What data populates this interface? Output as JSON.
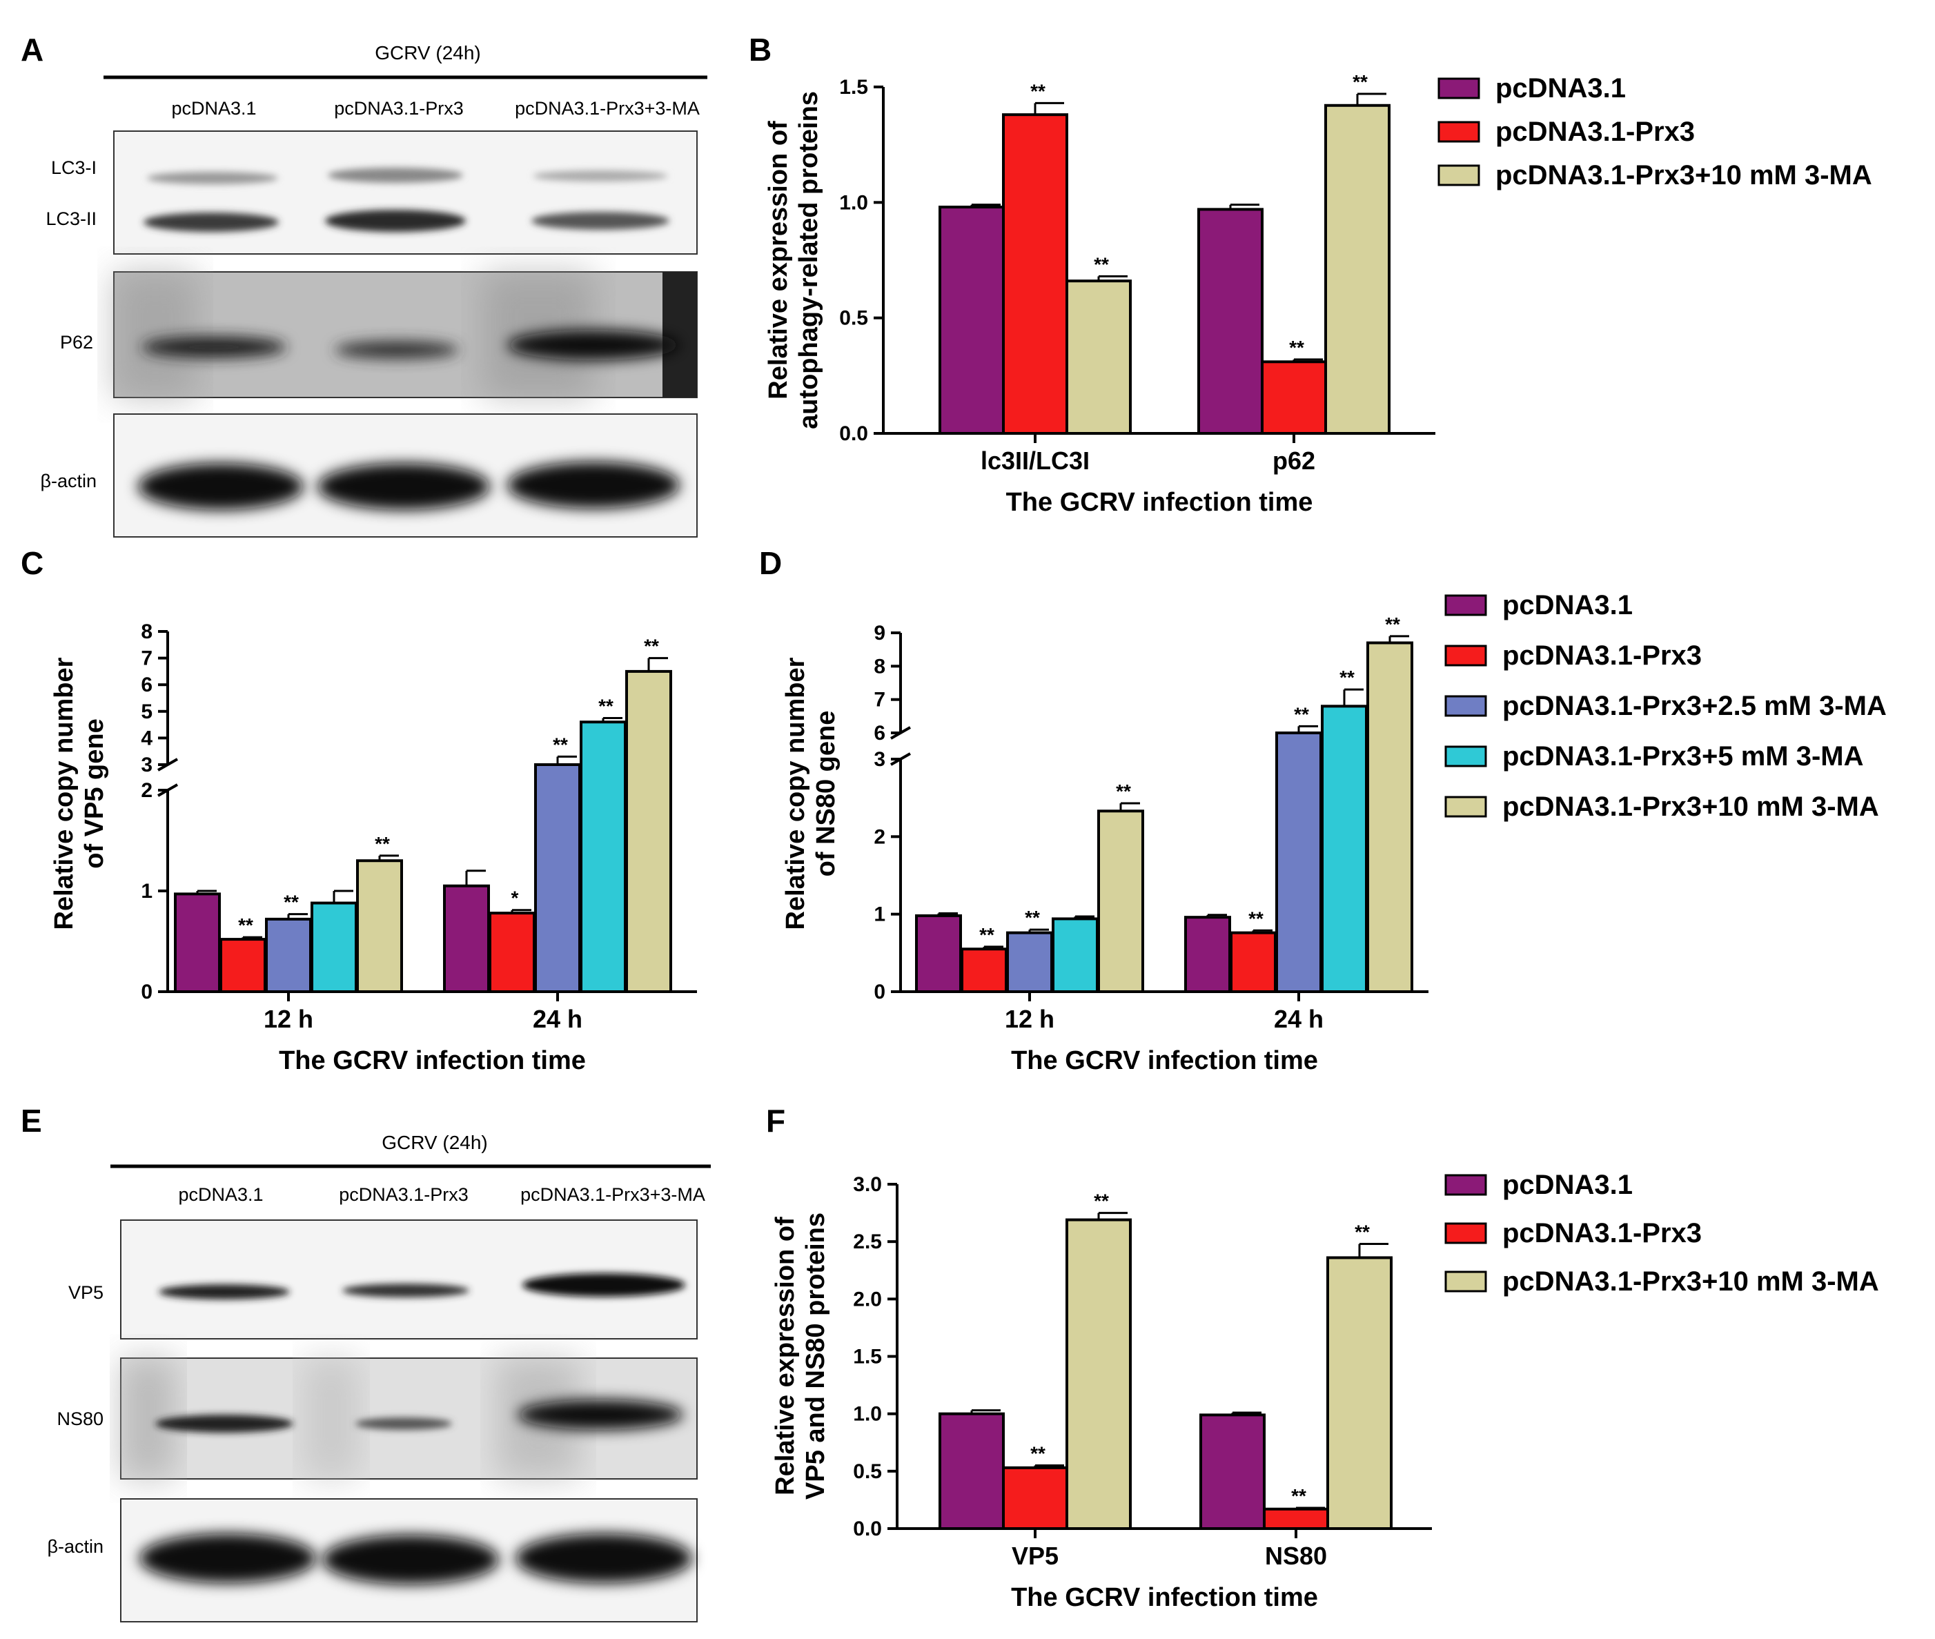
{
  "colors": {
    "pcDNA31": "#8B1A77",
    "Prx3": "#F51C1C",
    "Prx3_25": "#6F7EC4",
    "Prx3_5": "#2FC9D6",
    "Prx3_10": "#D6D29C"
  },
  "blots": {
    "A": {
      "letter": "A",
      "header": "GCRV (24h)",
      "lanes": [
        "pcDNA3.1",
        "pcDNA3.1-Prx3",
        "pcDNA3.1-Prx3+3-MA"
      ],
      "labels": [
        "LC3-I",
        "LC3-II",
        "P62",
        "β-actin"
      ]
    },
    "E": {
      "letter": "E",
      "header": "GCRV (24h)",
      "lanes": [
        "pcDNA3.1",
        "pcDNA3.1-Prx3",
        "pcDNA3.1-Prx3+3-MA"
      ],
      "labels": [
        "VP5",
        "NS80",
        "β-actin"
      ]
    }
  },
  "chart_data": [
    {
      "panel": "B",
      "type": "bar",
      "categories": [
        "lc3II/LC3I",
        "p62"
      ],
      "series": [
        {
          "name": "pcDNA3.1",
          "values": [
            0.98,
            0.97
          ],
          "err": [
            0.01,
            0.02
          ],
          "sig": [
            "",
            ""
          ]
        },
        {
          "name": "pcDNA3.1-Prx3",
          "values": [
            1.38,
            0.31
          ],
          "err": [
            0.05,
            0.01
          ],
          "sig": [
            "**",
            "**"
          ]
        },
        {
          "name": "pcDNA3.1-Prx3+10 mM 3-MA",
          "values": [
            0.66,
            1.42
          ],
          "err": [
            0.02,
            0.05
          ],
          "sig": [
            "**",
            "**"
          ]
        }
      ],
      "xlabel": "The GCRV infection time",
      "ylabel": [
        "Relative expression of",
        "autophagy-related proteins"
      ],
      "yticks": [
        "0.0",
        "0.5",
        "1.0",
        "1.5"
      ],
      "ylim": [
        0,
        1.5
      ]
    },
    {
      "panel": "C",
      "type": "bar",
      "categories": [
        "12 h",
        "24 h"
      ],
      "series": [
        {
          "name": "pcDNA3.1",
          "values": [
            0.97,
            1.05
          ],
          "err": [
            0.03,
            0.15
          ],
          "sig": [
            "",
            ""
          ]
        },
        {
          "name": "pcDNA3.1-Prx3",
          "values": [
            0.52,
            0.78
          ],
          "err": [
            0.02,
            0.03
          ],
          "sig": [
            "**",
            "*"
          ]
        },
        {
          "name": "pcDNA3.1-Prx3+2.5 mM 3-MA",
          "values": [
            0.72,
            3.0
          ],
          "err": [
            0.05,
            0.3
          ],
          "sig": [
            "**",
            "**"
          ]
        },
        {
          "name": "pcDNA3.1-Prx3+5 mM 3-MA",
          "values": [
            0.88,
            4.6
          ],
          "err": [
            0.12,
            0.15
          ],
          "sig": [
            "",
            "**"
          ]
        },
        {
          "name": "pcDNA3.1-Prx3+10 mM 3-MA",
          "values": [
            1.3,
            6.5
          ],
          "err": [
            0.05,
            0.5
          ],
          "sig": [
            "**",
            "**"
          ]
        }
      ],
      "xlabel": "The GCRV infection time",
      "ylabel": [
        "Relative copy number",
        "of VP5 gene"
      ],
      "yticks_low": [
        "0",
        "1",
        "2"
      ],
      "yticks_high": [
        "3",
        "4",
        "5",
        "6",
        "7",
        "8"
      ],
      "axis_break": [
        2,
        3
      ]
    },
    {
      "panel": "D",
      "type": "bar",
      "categories": [
        "12 h",
        "24 h"
      ],
      "series": [
        {
          "name": "pcDNA3.1",
          "values": [
            0.98,
            0.96
          ],
          "err": [
            0.03,
            0.03
          ],
          "sig": [
            "",
            ""
          ]
        },
        {
          "name": "pcDNA3.1-Prx3",
          "values": [
            0.55,
            0.76
          ],
          "err": [
            0.03,
            0.03
          ],
          "sig": [
            "**",
            "**"
          ]
        },
        {
          "name": "pcDNA3.1-Prx3+2.5 mM 3-MA",
          "values": [
            0.76,
            6.0
          ],
          "err": [
            0.04,
            0.2
          ],
          "sig": [
            "**",
            "**"
          ]
        },
        {
          "name": "pcDNA3.1-Prx3+5 mM 3-MA",
          "values": [
            0.94,
            6.8
          ],
          "err": [
            0.03,
            0.5
          ],
          "sig": [
            "",
            "**"
          ]
        },
        {
          "name": "pcDNA3.1-Prx3+10 mM 3-MA",
          "values": [
            2.33,
            8.7
          ],
          "err": [
            0.1,
            0.2
          ],
          "sig": [
            "**",
            "**"
          ]
        }
      ],
      "xlabel": "The GCRV infection time",
      "ylabel": [
        "Relative copy number",
        "of NS80 gene"
      ],
      "yticks_low": [
        "0",
        "1",
        "2",
        "3"
      ],
      "yticks_high": [
        "6",
        "7",
        "8",
        "9"
      ],
      "axis_break": [
        3,
        6
      ]
    },
    {
      "panel": "F",
      "type": "bar",
      "categories": [
        "VP5",
        "NS80"
      ],
      "series": [
        {
          "name": "pcDNA3.1",
          "values": [
            1.0,
            0.99
          ],
          "err": [
            0.03,
            0.02
          ],
          "sig": [
            "",
            ""
          ]
        },
        {
          "name": "pcDNA3.1-Prx3",
          "values": [
            0.53,
            0.17
          ],
          "err": [
            0.02,
            0.01
          ],
          "sig": [
            "**",
            "**"
          ]
        },
        {
          "name": "pcDNA3.1-Prx3+10 mM 3-MA",
          "values": [
            2.69,
            2.36
          ],
          "err": [
            0.06,
            0.12
          ],
          "sig": [
            "**",
            "**"
          ]
        }
      ],
      "xlabel": "The GCRV infection time",
      "ylabel": [
        "Relative expression of",
        "VP5 and NS80 proteins"
      ],
      "yticks": [
        "0.0",
        "0.5",
        "1.0",
        "1.5",
        "2.0",
        "2.5",
        "3.0"
      ],
      "ylim": [
        0,
        3.0
      ]
    }
  ],
  "legends": {
    "B": [
      "pcDNA3.1",
      "pcDNA3.1-Prx3",
      "pcDNA3.1-Prx3+10 mM 3-MA"
    ],
    "D": [
      "pcDNA3.1",
      "pcDNA3.1-Prx3",
      "pcDNA3.1-Prx3+2.5 mM 3-MA",
      "pcDNA3.1-Prx3+5 mM 3-MA",
      "pcDNA3.1-Prx3+10 mM 3-MA"
    ],
    "F": [
      "pcDNA3.1",
      "pcDNA3.1-Prx3",
      "pcDNA3.1-Prx3+10 mM 3-MA"
    ]
  },
  "panel_letters": {
    "B": "B",
    "C": "C",
    "D": "D",
    "F": "F"
  }
}
